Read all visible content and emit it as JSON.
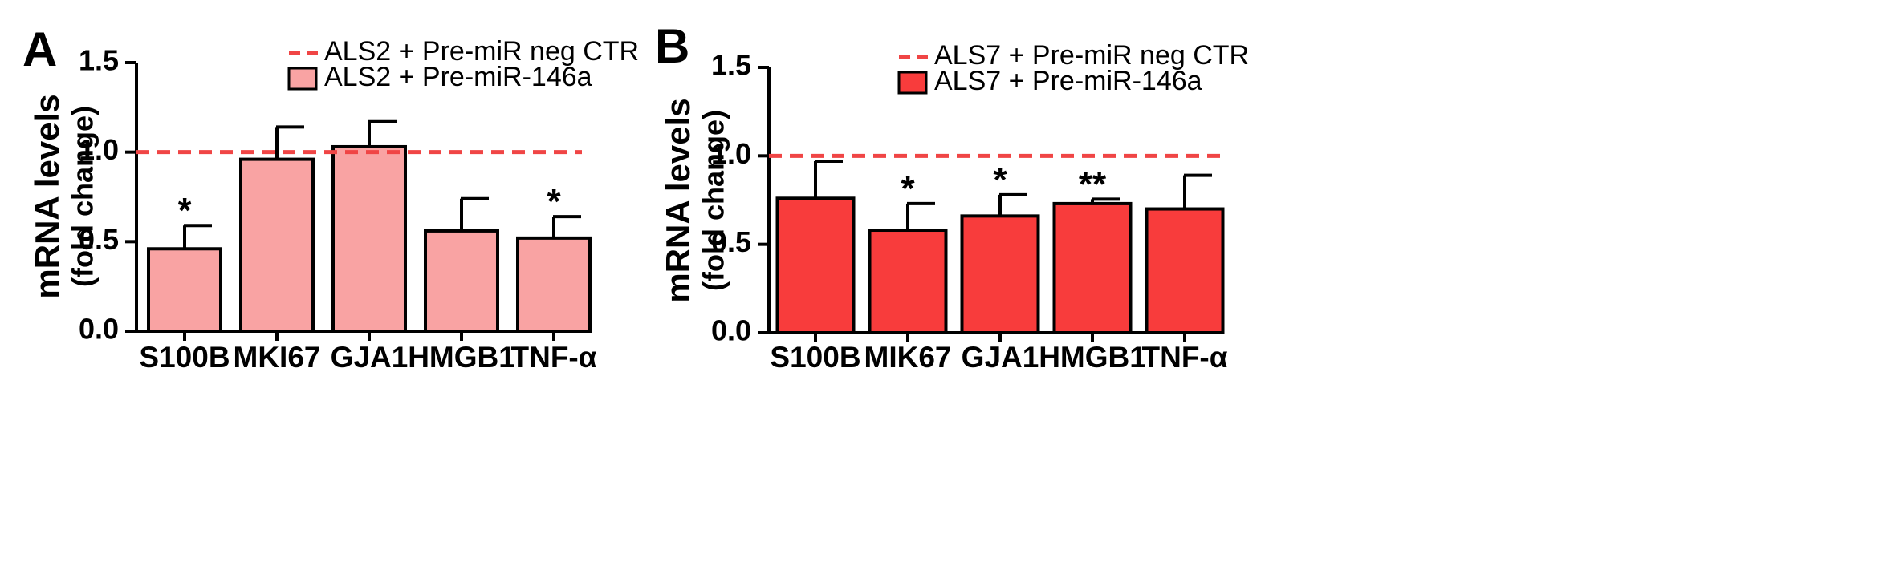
{
  "chart_data": [
    {
      "type": "bar",
      "panel_label": "A",
      "ylabel": "mRNA levels",
      "ylabel_sub": "(fold change)",
      "ylim": [
        0,
        1.5
      ],
      "yticks": [
        "0.0",
        "0.5",
        "1.0",
        "1.5"
      ],
      "ytick_values": [
        0,
        0.5,
        1.0,
        1.5
      ],
      "categories": [
        "S100B",
        "MKI67",
        "GJA1",
        "HMGB1",
        "TNF-α"
      ],
      "values": [
        0.46,
        0.96,
        1.03,
        0.56,
        0.52
      ],
      "errors": [
        0.13,
        0.18,
        0.14,
        0.18,
        0.12
      ],
      "significance": [
        "*",
        "",
        "",
        "",
        "*"
      ],
      "reference_line": 1.0,
      "legend": {
        "line_label": "ALS2 + Pre-miR neg CTR",
        "bar_label": "ALS2 + Pre-miR-146a"
      },
      "colors": {
        "bar": "#f9a3a3",
        "line": "#f04545"
      }
    },
    {
      "type": "bar",
      "panel_label": "B",
      "ylabel": "mRNA levels",
      "ylabel_sub": "(fold change)",
      "ylim": [
        0,
        1.5
      ],
      "yticks": [
        "0.0",
        "0.5",
        "1.0",
        "1.5"
      ],
      "ytick_values": [
        0,
        0.5,
        1.0,
        1.5
      ],
      "categories": [
        "S100B",
        "MIK67",
        "GJA1",
        "HMGB1",
        "TNF-α"
      ],
      "values": [
        0.76,
        0.58,
        0.66,
        0.73,
        0.7
      ],
      "errors": [
        0.21,
        0.15,
        0.12,
        0.025,
        0.19
      ],
      "significance": [
        "",
        "*",
        "*",
        "**",
        ""
      ],
      "reference_line": 1.0,
      "legend": {
        "line_label": "ALS7 + Pre-miR neg CTR",
        "bar_label": "ALS7 + Pre-miR-146a"
      },
      "colors": {
        "bar": "#f83c3c",
        "line": "#f04545"
      }
    }
  ]
}
